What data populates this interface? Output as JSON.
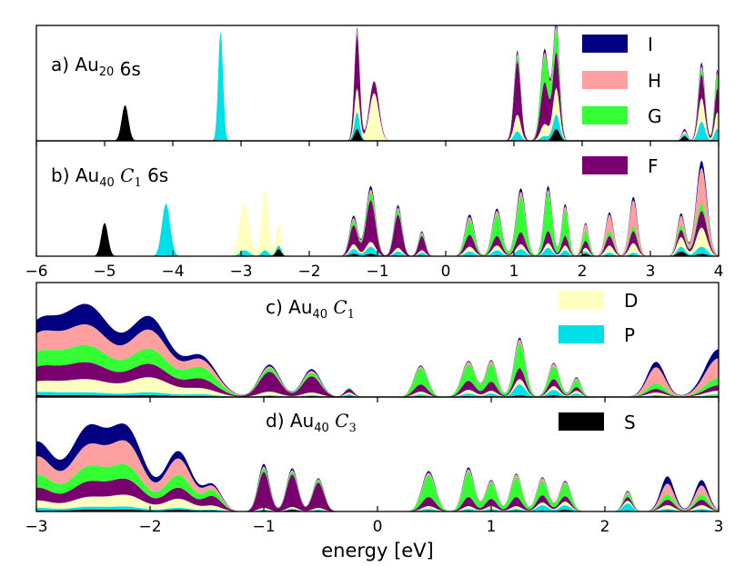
{
  "colors": {
    "S": "#000000",
    "P": "#00e0e8",
    "D": "#ffffc0",
    "F": "#7a0070",
    "G": "#33ff33",
    "H": "#ffa0a0",
    "I": "#000080"
  },
  "chart_data": [
    {
      "type": "area",
      "stacked": true,
      "title": "",
      "panel_label": {
        "prefix": "a) Au",
        "sub": "20",
        "mid": "",
        "sym": "",
        "symsub": "",
        "suffix": " 6s"
      },
      "series_order": [
        "S",
        "P",
        "D",
        "F",
        "G",
        "H",
        "I"
      ],
      "xlim": [
        -6,
        4
      ],
      "x_ticks": [],
      "peaks": [
        {
          "x": -4.7,
          "w": 0.05,
          "S": 30,
          "P": 0,
          "D": 0,
          "F": 0,
          "G": 0,
          "H": 0,
          "I": 0
        },
        {
          "x": -3.3,
          "w": 0.035,
          "S": 0,
          "P": 92,
          "D": 0,
          "F": 0,
          "G": 0,
          "H": 0,
          "I": 0
        },
        {
          "x": -1.3,
          "w": 0.04,
          "S": 10,
          "P": 14,
          "D": 20,
          "F": 45,
          "G": 2,
          "H": 2,
          "I": 2
        },
        {
          "x": -1.05,
          "w": 0.07,
          "S": 0,
          "P": 0,
          "D": 40,
          "F": 10,
          "G": 0,
          "H": 0,
          "I": 0
        },
        {
          "x": 1.05,
          "w": 0.05,
          "S": 0,
          "P": 8,
          "D": 14,
          "F": 45,
          "G": 5,
          "H": 2,
          "I": 2
        },
        {
          "x": 1.45,
          "w": 0.06,
          "S": 0,
          "P": 4,
          "D": 10,
          "F": 35,
          "G": 22,
          "H": 3,
          "I": 3
        },
        {
          "x": 1.62,
          "w": 0.05,
          "S": 10,
          "P": 12,
          "D": 22,
          "F": 30,
          "G": 18,
          "H": 4,
          "I": 4
        },
        {
          "x": 3.5,
          "w": 0.04,
          "S": 4,
          "P": 2,
          "D": 2,
          "F": 2,
          "G": 0,
          "H": 0,
          "I": 0
        },
        {
          "x": 3.75,
          "w": 0.05,
          "S": 0,
          "P": 16,
          "D": 20,
          "F": 20,
          "G": 4,
          "H": 3,
          "I": 3
        },
        {
          "x": 3.98,
          "w": 0.04,
          "S": 0,
          "P": 10,
          "D": 14,
          "F": 20,
          "G": 10,
          "H": 4,
          "I": 2
        }
      ]
    },
    {
      "type": "area",
      "stacked": true,
      "title": "",
      "panel_label": {
        "prefix": "b) Au",
        "sub": "40",
        "mid": " ",
        "sym": "C",
        "symsub": "1",
        "suffix": "  6s"
      },
      "series_order": [
        "S",
        "P",
        "D",
        "F",
        "G",
        "H",
        "I"
      ],
      "xlim": [
        -6,
        4
      ],
      "x_ticks": [
        -6,
        -5,
        -4,
        -3,
        -2,
        -1,
        0,
        1,
        2,
        3,
        4
      ],
      "x_ticklabels": [
        "−6",
        "−5",
        "−4",
        "−3",
        "−2",
        "−1",
        "0",
        "1",
        "2",
        "3",
        "4"
      ],
      "peaks": [
        {
          "x": -5.0,
          "w": 0.05,
          "S": 28,
          "P": 0,
          "D": 0,
          "F": 0,
          "G": 0,
          "H": 0,
          "I": 0
        },
        {
          "x": -4.1,
          "w": 0.06,
          "S": 0,
          "P": 44,
          "D": 0,
          "F": 0,
          "G": 0,
          "H": 0,
          "I": 0
        },
        {
          "x": -2.95,
          "w": 0.07,
          "S": 1,
          "P": 4,
          "D": 40,
          "F": 0,
          "G": 0,
          "H": 0,
          "I": 0
        },
        {
          "x": -2.65,
          "w": 0.05,
          "S": 1,
          "P": 4,
          "D": 50,
          "F": 0,
          "G": 0,
          "H": 0,
          "I": 0
        },
        {
          "x": -2.45,
          "w": 0.04,
          "S": 6,
          "P": 3,
          "D": 18,
          "F": 0,
          "G": 0,
          "H": 0,
          "I": 0
        },
        {
          "x": -1.35,
          "w": 0.06,
          "S": 2,
          "P": 4,
          "D": 4,
          "F": 16,
          "G": 4,
          "H": 2,
          "I": 2
        },
        {
          "x": -1.1,
          "w": 0.07,
          "S": 2,
          "P": 6,
          "D": 4,
          "F": 35,
          "G": 6,
          "H": 3,
          "I": 3
        },
        {
          "x": -0.7,
          "w": 0.06,
          "S": 1,
          "P": 3,
          "D": 3,
          "F": 28,
          "G": 4,
          "H": 2,
          "I": 2
        },
        {
          "x": -0.35,
          "w": 0.05,
          "S": 1,
          "P": 2,
          "D": 2,
          "F": 12,
          "G": 2,
          "H": 1,
          "I": 1
        },
        {
          "x": 0.35,
          "w": 0.07,
          "S": 1,
          "P": 3,
          "D": 4,
          "F": 10,
          "G": 12,
          "H": 3,
          "I": 2
        },
        {
          "x": 0.75,
          "w": 0.07,
          "S": 1,
          "P": 4,
          "D": 4,
          "F": 8,
          "G": 18,
          "H": 3,
          "I": 2
        },
        {
          "x": 1.1,
          "w": 0.07,
          "S": 1,
          "P": 5,
          "D": 4,
          "F": 10,
          "G": 30,
          "H": 4,
          "I": 3
        },
        {
          "x": 1.5,
          "w": 0.06,
          "S": 1,
          "P": 6,
          "D": 4,
          "F": 10,
          "G": 32,
          "H": 3,
          "I": 3
        },
        {
          "x": 1.75,
          "w": 0.05,
          "S": 1,
          "P": 4,
          "D": 4,
          "F": 8,
          "G": 22,
          "H": 3,
          "I": 2
        },
        {
          "x": 2.05,
          "w": 0.05,
          "S": 2,
          "P": 2,
          "D": 3,
          "F": 6,
          "G": 8,
          "H": 6,
          "I": 1
        },
        {
          "x": 2.4,
          "w": 0.06,
          "S": 1,
          "P": 2,
          "D": 6,
          "F": 8,
          "G": 4,
          "H": 14,
          "I": 2
        },
        {
          "x": 2.75,
          "w": 0.06,
          "S": 1,
          "P": 2,
          "D": 8,
          "F": 10,
          "G": 4,
          "H": 22,
          "I": 3
        },
        {
          "x": 3.45,
          "w": 0.06,
          "S": 4,
          "P": 4,
          "D": 8,
          "F": 6,
          "G": 4,
          "H": 8,
          "I": 2
        },
        {
          "x": 3.75,
          "w": 0.08,
          "S": 2,
          "P": 6,
          "D": 16,
          "F": 14,
          "G": 6,
          "H": 30,
          "I": 6
        }
      ]
    },
    {
      "type": "area",
      "stacked": true,
      "title": "",
      "panel_label": {
        "prefix": "c) Au",
        "sub": "40",
        "mid": " ",
        "sym": "C",
        "symsub": "1",
        "suffix": ""
      },
      "series_order": [
        "S",
        "P",
        "D",
        "F",
        "G",
        "H",
        "I"
      ],
      "xlim": [
        -3,
        3
      ],
      "x_ticks": [],
      "peaks": [
        {
          "x": -3.0,
          "w": 0.18,
          "S": 2,
          "P": 3,
          "D": 10,
          "F": 14,
          "G": 14,
          "H": 18,
          "I": 12
        },
        {
          "x": -2.55,
          "w": 0.22,
          "S": 2,
          "P": 3,
          "D": 14,
          "F": 18,
          "G": 18,
          "H": 22,
          "I": 22
        },
        {
          "x": -2.0,
          "w": 0.18,
          "S": 2,
          "P": 3,
          "D": 16,
          "F": 14,
          "G": 16,
          "H": 20,
          "I": 14
        },
        {
          "x": -1.55,
          "w": 0.14,
          "S": 1,
          "P": 2,
          "D": 6,
          "F": 10,
          "G": 12,
          "H": 8,
          "I": 4
        },
        {
          "x": -0.95,
          "w": 0.09,
          "S": 1,
          "P": 1,
          "D": 4,
          "F": 22,
          "G": 4,
          "H": 2,
          "I": 2
        },
        {
          "x": -0.58,
          "w": 0.08,
          "S": 1,
          "P": 1,
          "D": 3,
          "F": 18,
          "G": 4,
          "H": 2,
          "I": 2
        },
        {
          "x": -0.25,
          "w": 0.04,
          "S": 1,
          "P": 2,
          "D": 2,
          "F": 4,
          "G": 1,
          "H": 0,
          "I": 0
        },
        {
          "x": 0.38,
          "w": 0.06,
          "S": 1,
          "P": 2,
          "D": 3,
          "F": 8,
          "G": 18,
          "H": 2,
          "I": 1
        },
        {
          "x": 0.8,
          "w": 0.06,
          "S": 1,
          "P": 3,
          "D": 4,
          "F": 10,
          "G": 18,
          "H": 3,
          "I": 1
        },
        {
          "x": 1.0,
          "w": 0.05,
          "S": 1,
          "P": 3,
          "D": 3,
          "F": 10,
          "G": 20,
          "H": 3,
          "I": 1
        },
        {
          "x": 1.25,
          "w": 0.05,
          "S": 2,
          "P": 12,
          "D": 6,
          "F": 12,
          "G": 28,
          "H": 4,
          "I": 2
        },
        {
          "x": 1.55,
          "w": 0.05,
          "S": 2,
          "P": 6,
          "D": 4,
          "F": 8,
          "G": 14,
          "H": 3,
          "I": 1
        },
        {
          "x": 1.75,
          "w": 0.04,
          "S": 1,
          "P": 3,
          "D": 3,
          "F": 4,
          "G": 8,
          "H": 2,
          "I": 1
        },
        {
          "x": 2.45,
          "w": 0.08,
          "S": 1,
          "P": 1,
          "D": 3,
          "F": 4,
          "G": 6,
          "H": 18,
          "I": 6
        },
        {
          "x": 3.0,
          "w": 0.12,
          "S": 1,
          "P": 2,
          "D": 4,
          "F": 6,
          "G": 8,
          "H": 22,
          "I": 10
        }
      ]
    },
    {
      "type": "area",
      "stacked": true,
      "title": "",
      "panel_label": {
        "prefix": "d) Au",
        "sub": "40",
        "mid": " ",
        "sym": "C",
        "symsub": "3",
        "suffix": ""
      },
      "series_order": [
        "S",
        "P",
        "D",
        "F",
        "G",
        "H",
        "I"
      ],
      "xlim": [
        -3,
        3
      ],
      "x_ticks": [
        -3,
        -2,
        -1,
        0,
        1,
        2,
        3
      ],
      "x_ticklabels": [
        "−3",
        "−2",
        "−1",
        "0",
        "1",
        "2",
        "3"
      ],
      "xlabel": "energy [eV]",
      "peaks": [
        {
          "x": -3.0,
          "w": 0.15,
          "S": 1,
          "P": 3,
          "D": 8,
          "F": 14,
          "G": 14,
          "H": 20,
          "I": 16
        },
        {
          "x": -2.55,
          "w": 0.16,
          "S": 2,
          "P": 3,
          "D": 10,
          "F": 16,
          "G": 16,
          "H": 22,
          "I": 20
        },
        {
          "x": -2.2,
          "w": 0.15,
          "S": 2,
          "P": 3,
          "D": 12,
          "F": 16,
          "G": 14,
          "H": 24,
          "I": 16
        },
        {
          "x": -1.75,
          "w": 0.12,
          "S": 2,
          "P": 2,
          "D": 10,
          "F": 12,
          "G": 14,
          "H": 18,
          "I": 8
        },
        {
          "x": -1.45,
          "w": 0.08,
          "S": 1,
          "P": 1,
          "D": 4,
          "F": 10,
          "G": 6,
          "H": 4,
          "I": 2
        },
        {
          "x": -1.0,
          "w": 0.05,
          "S": 1,
          "P": 1,
          "D": 2,
          "F": 40,
          "G": 4,
          "H": 2,
          "I": 3
        },
        {
          "x": -0.75,
          "w": 0.05,
          "S": 2,
          "P": 1,
          "D": 2,
          "F": 36,
          "G": 3,
          "H": 2,
          "I": 2
        },
        {
          "x": -0.52,
          "w": 0.05,
          "S": 1,
          "P": 1,
          "D": 2,
          "F": 28,
          "G": 3,
          "H": 1,
          "I": 1
        },
        {
          "x": 0.45,
          "w": 0.06,
          "S": 1,
          "P": 2,
          "D": 3,
          "F": 10,
          "G": 24,
          "H": 3,
          "I": 2
        },
        {
          "x": 0.8,
          "w": 0.05,
          "S": 1,
          "P": 2,
          "D": 3,
          "F": 10,
          "G": 28,
          "H": 3,
          "I": 2
        },
        {
          "x": 1.0,
          "w": 0.05,
          "S": 1,
          "P": 2,
          "D": 3,
          "F": 8,
          "G": 18,
          "H": 2,
          "I": 1
        },
        {
          "x": 1.22,
          "w": 0.05,
          "S": 1,
          "P": 2,
          "D": 3,
          "F": 10,
          "G": 22,
          "H": 3,
          "I": 1
        },
        {
          "x": 1.45,
          "w": 0.05,
          "S": 1,
          "P": 6,
          "D": 3,
          "F": 8,
          "G": 16,
          "H": 3,
          "I": 1
        },
        {
          "x": 1.65,
          "w": 0.05,
          "S": 2,
          "P": 5,
          "D": 4,
          "F": 6,
          "G": 14,
          "H": 2,
          "I": 1
        },
        {
          "x": 2.2,
          "w": 0.04,
          "S": 1,
          "P": 8,
          "D": 3,
          "F": 4,
          "G": 4,
          "H": 2,
          "I": 1
        },
        {
          "x": 2.55,
          "w": 0.06,
          "S": 1,
          "P": 2,
          "D": 4,
          "F": 6,
          "G": 6,
          "H": 12,
          "I": 8
        },
        {
          "x": 2.85,
          "w": 0.06,
          "S": 1,
          "P": 2,
          "D": 4,
          "F": 6,
          "G": 6,
          "H": 10,
          "I": 6
        }
      ]
    }
  ],
  "legend_panel_a": [
    "I",
    "H",
    "G",
    "F"
  ],
  "legend_panel_c": [
    "D",
    "P",
    "S"
  ]
}
